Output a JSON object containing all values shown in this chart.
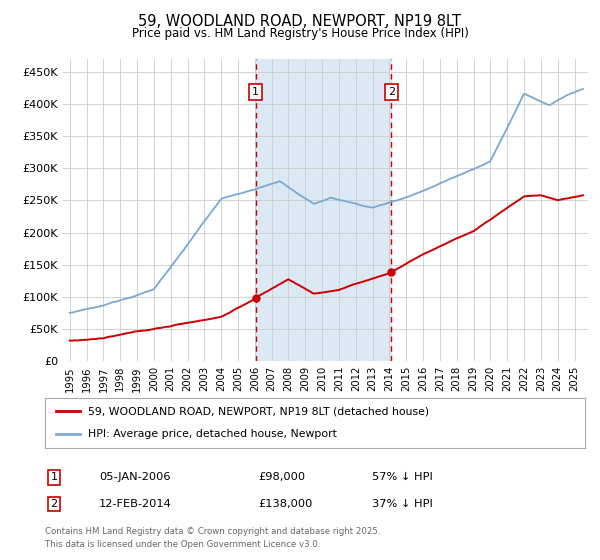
{
  "title_line1": "59, WOODLAND ROAD, NEWPORT, NP19 8LT",
  "title_line2": "Price paid vs. HM Land Registry's House Price Index (HPI)",
  "ylim": [
    0,
    470000
  ],
  "yticks": [
    0,
    50000,
    100000,
    150000,
    200000,
    250000,
    300000,
    350000,
    400000,
    450000
  ],
  "ytick_labels": [
    "£0",
    "£50K",
    "£100K",
    "£150K",
    "£200K",
    "£250K",
    "£300K",
    "£350K",
    "£400K",
    "£450K"
  ],
  "hpi_color": "#7aa8d4",
  "price_color": "#cc0000",
  "sale1_date": "05-JAN-2006",
  "sale1_price": 98000,
  "sale1_pct": "57% ↓ HPI",
  "sale2_date": "12-FEB-2014",
  "sale2_price": 138000,
  "sale2_pct": "37% ↓ HPI",
  "legend_label1": "59, WOODLAND ROAD, NEWPORT, NP19 8LT (detached house)",
  "legend_label2": "HPI: Average price, detached house, Newport",
  "footnote_line1": "Contains HM Land Registry data © Crown copyright and database right 2025.",
  "footnote_line2": "This data is licensed under the Open Government Licence v3.0.",
  "shade_color": "#dde8f5",
  "plot_bg": "#ffffff",
  "grid_color": "#cccccc",
  "sale1_x_year": 2006.04,
  "sale2_x_year": 2014.12,
  "xmin": 1994.6,
  "xmax": 2025.8
}
